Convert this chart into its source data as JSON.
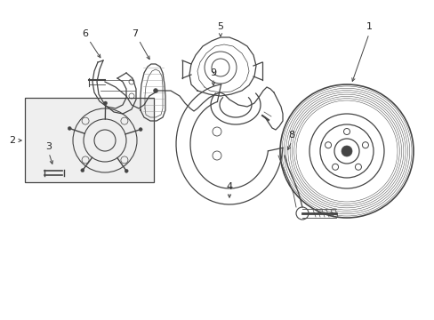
{
  "bg_color": "#ffffff",
  "line_color": "#444444",
  "label_color": "#222222",
  "fig_width": 4.89,
  "fig_height": 3.6,
  "dpi": 100
}
